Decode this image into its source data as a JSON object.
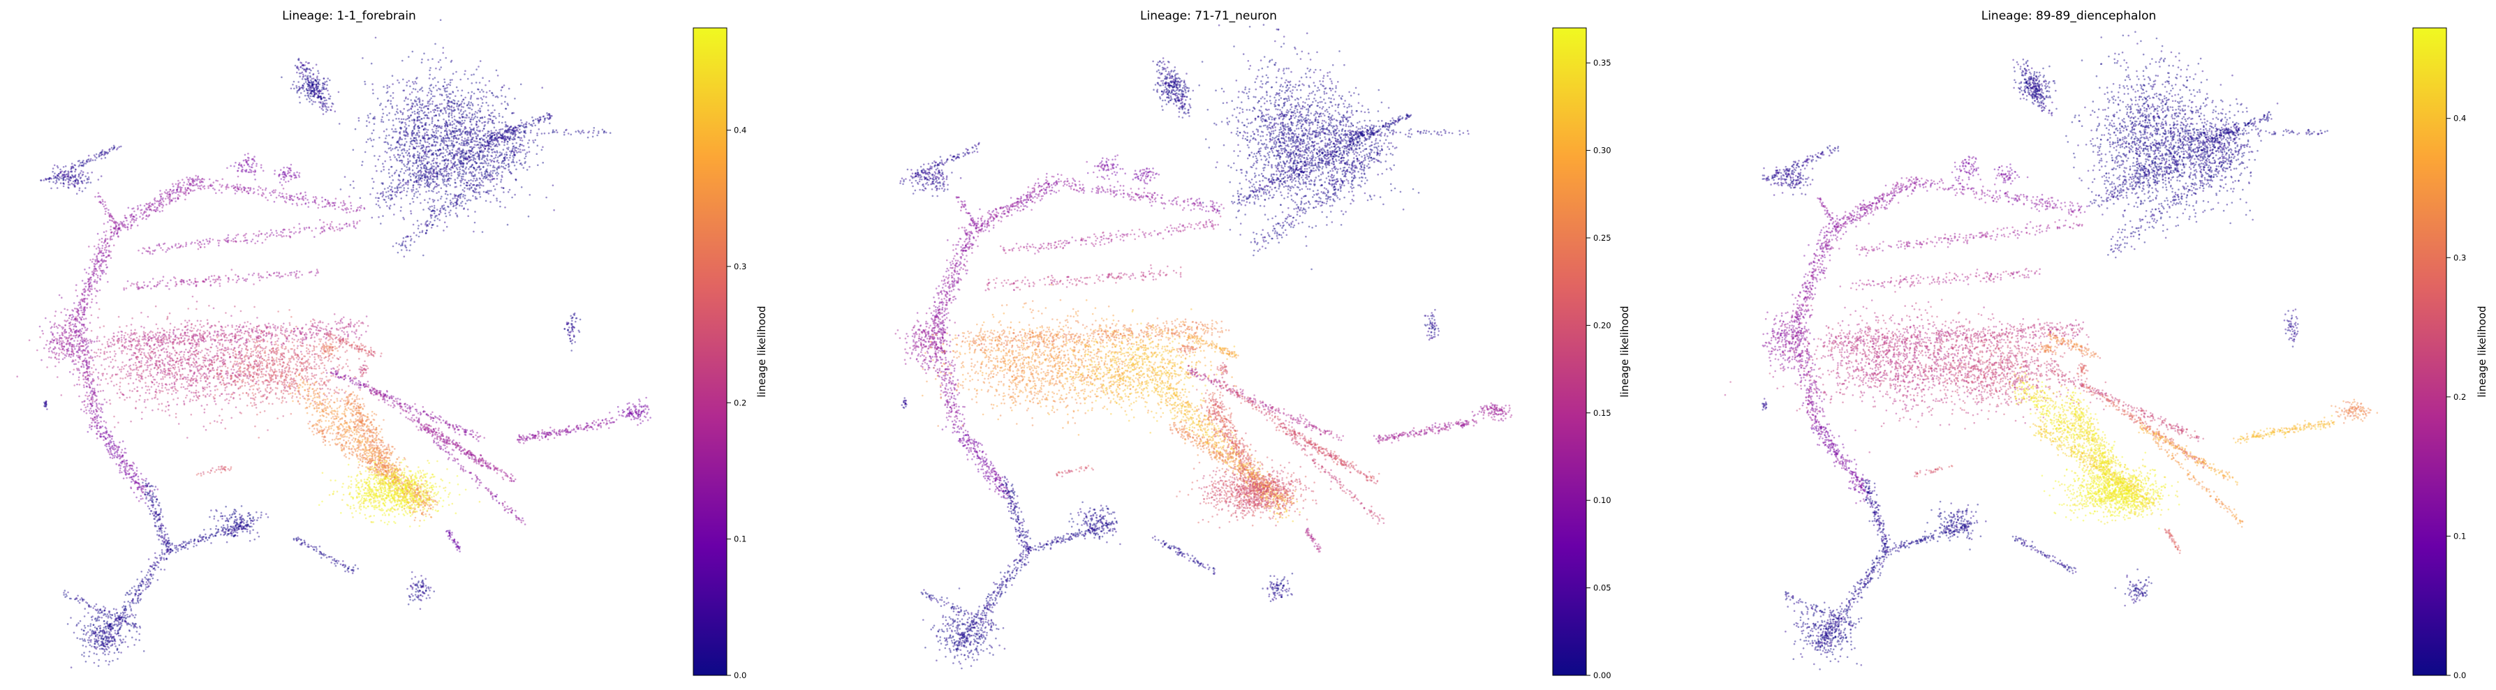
{
  "figure": {
    "colormap": "plasma",
    "colormap_stops": [
      "#0d0887",
      "#6a00a8",
      "#b12a90",
      "#e16462",
      "#fca636",
      "#f0f921"
    ],
    "background": "#ffffff"
  },
  "chart_data": [
    {
      "type": "scatter",
      "title": "Lineage: 1-1_forebrain",
      "xlabel": "",
      "ylabel": "",
      "axes_visible": false,
      "colorbar": {
        "label": "lineage likelihood",
        "min": 0.0,
        "max": 0.475,
        "ticks": [
          0.0,
          0.1,
          0.2,
          0.3,
          0.4
        ],
        "tick_labels": [
          "0.0",
          "0.1",
          "0.2",
          "0.3",
          "0.4"
        ]
      },
      "hotspot_region": "lower-right fan (bright yellow cluster near the tail)"
    },
    {
      "type": "scatter",
      "title": "Lineage: 71-71_neuron",
      "xlabel": "",
      "ylabel": "",
      "axes_visible": false,
      "colorbar": {
        "label": "lineage likelihood",
        "min": 0.0,
        "max": 0.37,
        "ticks": [
          0.0,
          0.05,
          0.1,
          0.15,
          0.2,
          0.25,
          0.3,
          0.35
        ],
        "tick_labels": [
          "0.00",
          "0.05",
          "0.10",
          "0.15",
          "0.20",
          "0.25",
          "0.30",
          "0.35"
        ]
      },
      "hotspot_region": "central band (yellow/orange across the middle streams)"
    },
    {
      "type": "scatter",
      "title": "Lineage: 89-89_diencephalon",
      "xlabel": "",
      "ylabel": "",
      "axes_visible": false,
      "colorbar": {
        "label": "lineage likelihood",
        "min": 0.0,
        "max": 0.465,
        "ticks": [
          0.0,
          0.1,
          0.2,
          0.3,
          0.4
        ],
        "tick_labels": [
          "0.0",
          "0.1",
          "0.2",
          "0.3",
          "0.4"
        ]
      },
      "hotspot_region": "lower-right fan plus right-side streaks (yellow/orange)"
    }
  ]
}
